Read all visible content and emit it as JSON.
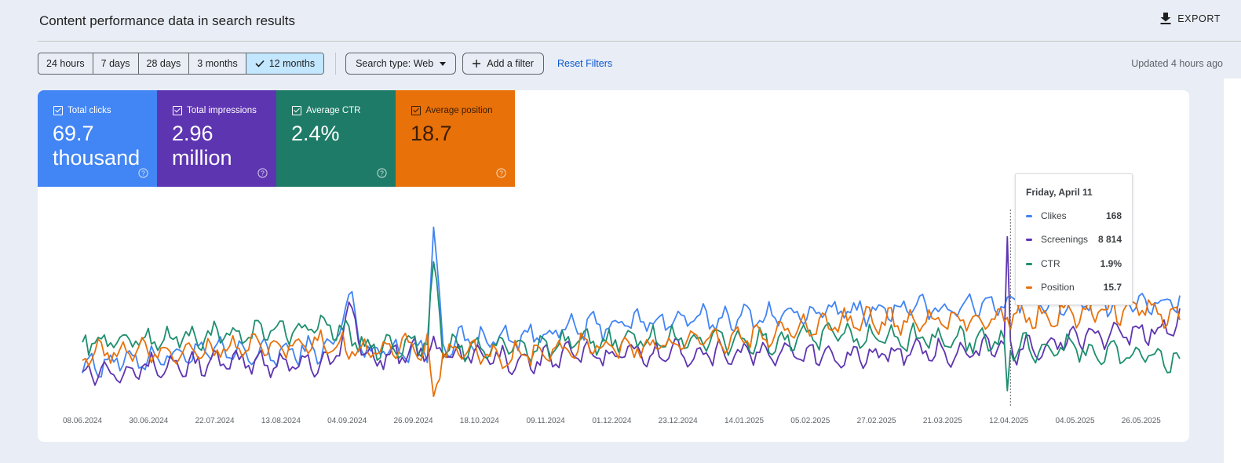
{
  "header": {
    "title": "Content performance data in search results",
    "export_label": "EXPORT"
  },
  "toolbar": {
    "ranges": [
      "24 hours",
      "7 days",
      "28 days",
      "3 months",
      "12 months"
    ],
    "active_range": "12 months",
    "search_type": "Search type: Web",
    "add_filter": "Add a filter",
    "reset": "Reset Filters",
    "updated": "Updated 4 hours ago"
  },
  "metrics": [
    {
      "label": "Total clicks",
      "value": "69.7 thousand",
      "color": "#4285f4"
    },
    {
      "label": "Total impressions",
      "value": "2.96 million",
      "color": "#5e35b1"
    },
    {
      "label": "Average CTR",
      "value": "2.4%",
      "color": "#1e8e6e"
    },
    {
      "label": "Average position",
      "value": "18.7",
      "color": "#e8710a"
    }
  ],
  "tooltip": {
    "date": "Friday, April 11",
    "rows": [
      {
        "name": "Clikes",
        "value": "168",
        "color": "#4285f4"
      },
      {
        "name": "Screenings",
        "value": "8 814",
        "color": "#5e35b1"
      },
      {
        "name": "CTR",
        "value": "1.9%",
        "color": "#1e8e6e"
      },
      {
        "name": "Position",
        "value": "15.7",
        "color": "#e8710a"
      }
    ]
  },
  "chart_data": {
    "type": "line",
    "x_ticks": [
      "08.06.2024",
      "30.06.2024",
      "22.07.2024",
      "13.08.2024",
      "04.09.2024",
      "26.09.2024",
      "18.10.2024",
      "09.11.2024",
      "01.12.2024",
      "23.12.2024",
      "14.01.2025",
      "05.02.2025",
      "27.02.2025",
      "21.03.2025",
      "12.04.2025",
      "04.05.2025",
      "26.05.2025"
    ],
    "grid": false,
    "highlight_date": "11.04.2025",
    "series": [
      {
        "name": "Clikes",
        "color": "#4285f4",
        "anchors": [
          [
            0,
            0.18
          ],
          [
            20,
            0.22
          ],
          [
            40,
            0.25
          ],
          [
            60,
            0.24
          ],
          [
            80,
            0.27
          ],
          [
            85,
            0.55
          ],
          [
            90,
            0.26
          ],
          [
            110,
            0.27
          ],
          [
            112,
            0.9
          ],
          [
            115,
            0.3
          ],
          [
            140,
            0.33
          ],
          [
            160,
            0.38
          ],
          [
            180,
            0.41
          ],
          [
            200,
            0.42
          ],
          [
            220,
            0.44
          ],
          [
            240,
            0.46
          ],
          [
            260,
            0.47
          ],
          [
            275,
            0.48
          ],
          [
            285,
            0.5
          ],
          [
            300,
            0.52
          ],
          [
            320,
            0.5
          ],
          [
            340,
            0.5
          ],
          [
            350,
            0.52
          ]
        ]
      },
      {
        "name": "Screenings",
        "color": "#5e35b1",
        "anchors": [
          [
            0,
            0.15
          ],
          [
            40,
            0.19
          ],
          [
            80,
            0.2
          ],
          [
            86,
            0.48
          ],
          [
            90,
            0.22
          ],
          [
            110,
            0.26
          ],
          [
            140,
            0.2
          ],
          [
            160,
            0.24
          ],
          [
            200,
            0.25
          ],
          [
            240,
            0.23
          ],
          [
            270,
            0.25
          ],
          [
            294,
            0.27
          ],
          [
            295,
            0.85
          ],
          [
            296,
            0.26
          ],
          [
            320,
            0.33
          ],
          [
            340,
            0.36
          ],
          [
            350,
            0.4
          ]
        ]
      },
      {
        "name": "CTR",
        "color": "#1e8e6e",
        "anchors": [
          [
            0,
            0.3
          ],
          [
            40,
            0.33
          ],
          [
            80,
            0.39
          ],
          [
            90,
            0.28
          ],
          [
            110,
            0.3
          ],
          [
            112,
            0.72
          ],
          [
            115,
            0.28
          ],
          [
            140,
            0.27
          ],
          [
            180,
            0.32
          ],
          [
            200,
            0.31
          ],
          [
            220,
            0.3
          ],
          [
            240,
            0.33
          ],
          [
            270,
            0.32
          ],
          [
            294,
            0.3
          ],
          [
            295,
            0.05
          ],
          [
            296,
            0.28
          ],
          [
            320,
            0.26
          ],
          [
            340,
            0.22
          ],
          [
            350,
            0.2
          ]
        ]
      },
      {
        "name": "Position",
        "color": "#e8710a",
        "anchors": [
          [
            0,
            0.24
          ],
          [
            40,
            0.26
          ],
          [
            80,
            0.29
          ],
          [
            90,
            0.27
          ],
          [
            110,
            0.27
          ],
          [
            112,
            0.02
          ],
          [
            115,
            0.24
          ],
          [
            140,
            0.23
          ],
          [
            160,
            0.27
          ],
          [
            200,
            0.3
          ],
          [
            230,
            0.38
          ],
          [
            250,
            0.41
          ],
          [
            270,
            0.42
          ],
          [
            295,
            0.43
          ],
          [
            320,
            0.46
          ],
          [
            340,
            0.48
          ],
          [
            350,
            0.42
          ]
        ]
      }
    ]
  }
}
